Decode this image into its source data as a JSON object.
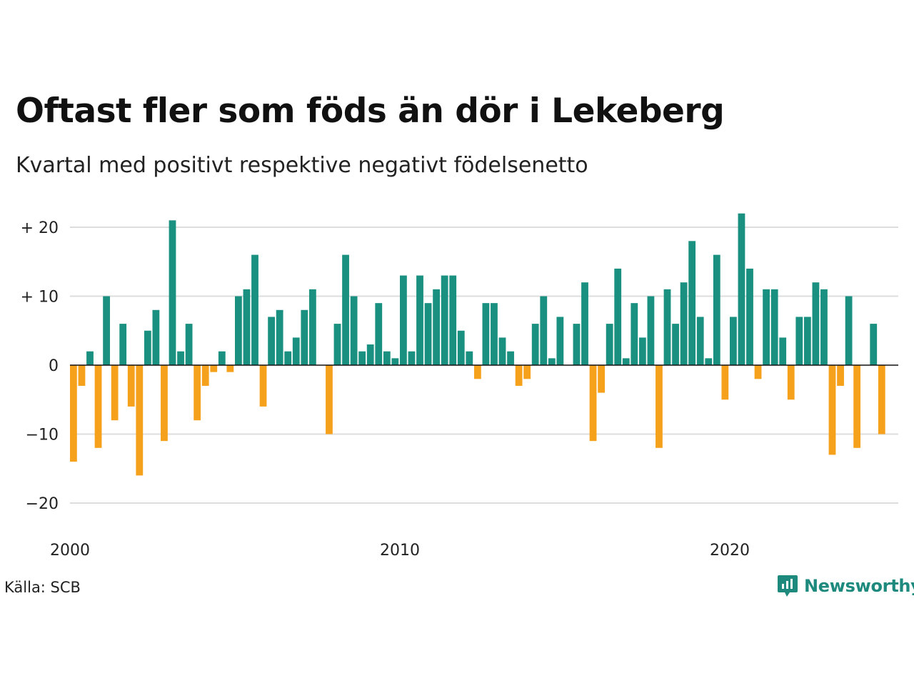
{
  "header": {
    "title": "Oftast fler som föds än dör i Lekeberg",
    "subtitle": "Kvartal med positivt respektive negativt födelsenetto"
  },
  "footer": {
    "source": "Källa: SCB",
    "brand": "Newsworthy",
    "brand_icon": "bar-chart-speech-bubble-icon"
  },
  "colors": {
    "positive": "#1a9080",
    "negative": "#f5a11c",
    "grid": "#dddddd",
    "brand": "#1e8a7e"
  },
  "chart_data": {
    "type": "bar",
    "title": "Oftast fler som föds än dör i Lekeberg",
    "subtitle": "Kvartal med positivt respektive negativt födelsenetto",
    "x_start": "2000",
    "x_step": "quarter",
    "xticks": [
      {
        "label": "2000",
        "index": 0
      },
      {
        "label": "2010",
        "index": 40
      },
      {
        "label": "2020",
        "index": 80
      }
    ],
    "yticks": [
      {
        "label": "+ 20",
        "value": 20
      },
      {
        "label": "+ 10",
        "value": 10
      },
      {
        "label": "0",
        "value": 0
      },
      {
        "label": "−10",
        "value": -10
      },
      {
        "label": "−20",
        "value": -20
      }
    ],
    "ylim": [
      -24,
      24
    ],
    "grid": true,
    "legend": "none",
    "values": [
      -14,
      -3,
      2,
      -12,
      10,
      -8,
      6,
      -6,
      -16,
      5,
      8,
      -11,
      21,
      2,
      6,
      -8,
      -3,
      -1,
      2,
      -1,
      10,
      11,
      16,
      -6,
      7,
      8,
      2,
      4,
      8,
      11,
      0,
      -10,
      6,
      16,
      10,
      2,
      3,
      9,
      2,
      1,
      13,
      2,
      13,
      9,
      11,
      13,
      13,
      5,
      2,
      -2,
      9,
      9,
      4,
      2,
      -3,
      -2,
      6,
      10,
      1,
      7,
      0,
      6,
      12,
      -11,
      -4,
      6,
      14,
      1,
      9,
      4,
      10,
      -12,
      11,
      6,
      12,
      18,
      7,
      1,
      16,
      -5,
      7,
      22,
      14,
      -2,
      11,
      11,
      4,
      -5,
      7,
      7,
      12,
      11,
      -13,
      -3,
      10,
      -12,
      0,
      6,
      -10
    ]
  }
}
